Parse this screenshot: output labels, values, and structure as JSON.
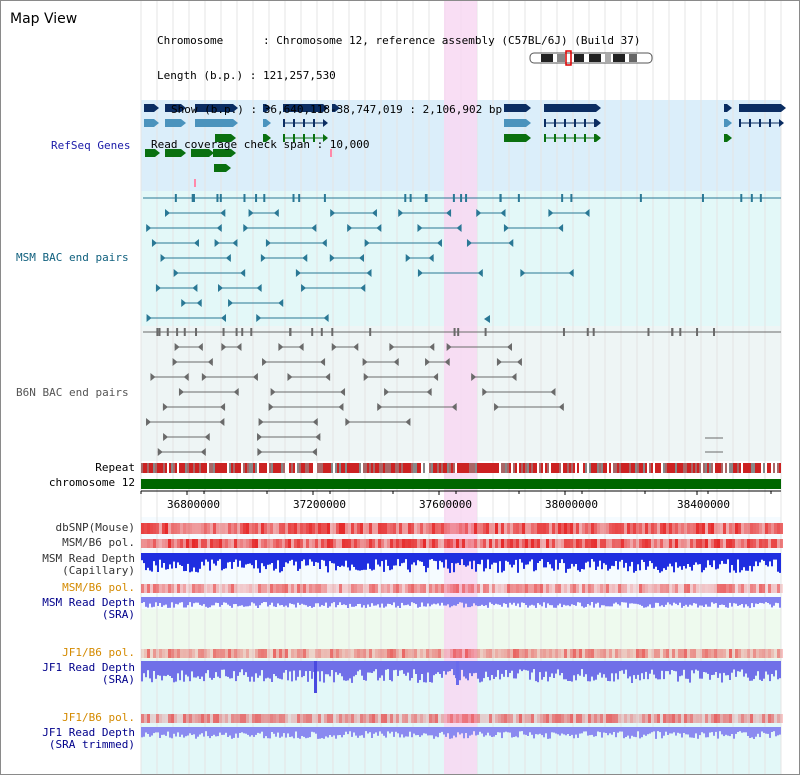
{
  "view_title": "Map View",
  "header": {
    "chromosome_line": "Chromosome      : Chromosome 12, reference assembly (C57BL/6J) (Build 37)",
    "length_line": "Length (b.p.) : 121,257,530",
    "show_line": "Show (b.p.) : 36,640,118-38,747,019 : 2,106,902 bp",
    "coverage_line": "Read coverage check span : 10,000"
  },
  "tracks": {
    "refseq": "RefSeq Genes",
    "msm_bac": "MSM BAC end pairs",
    "b6n_bac": "B6N BAC end pairs",
    "repeat": "Repeat",
    "chromosome": "chromosome 12",
    "dbsnp": "dbSNP(Mouse)",
    "msm_b6_pol_1": "MSM/B6 pol.",
    "msm_read_depth_cap_1": "MSM Read Depth",
    "msm_read_depth_cap_2": "(Capillary)",
    "msm_b6_pol_2": "MSM/B6 pol.",
    "msm_read_depth_sra_1": "MSM Read Depth",
    "msm_read_depth_sra_2": "(SRA)",
    "jf1_b6_pol_1": "JF1/B6 pol.",
    "jf1_read_depth_sra_1": "JF1 Read Depth",
    "jf1_read_depth_sra_2": "(SRA)",
    "jf1_b6_pol_2": "JF1/B6 pol.",
    "jf1_read_depth_trim_1": "JF1 Read Depth",
    "jf1_read_depth_trim_2": "(SRA trimmed)"
  },
  "axis": {
    "ticks": [
      "36800000",
      "37200000",
      "37600000",
      "38000000",
      "38400000"
    ]
  },
  "colors": {
    "refseq_bg": "#dbeefa",
    "msm_bg": "#e3f8f8",
    "b6n_bg": "#eef5f5",
    "highlight": "#f8d8f2",
    "gene_navy": "#0b2d62",
    "gene_light": "#4b93bd",
    "gene_green": "#0a7010",
    "msm_pair": "#2a7895",
    "b6n_pair": "#6a6a6a",
    "chromosome_bar": "#006600",
    "label_teal": "#10607e",
    "label_blue": "#00008b",
    "label_orange": "#d48a00",
    "label_navy": "#2a2a7a"
  }
}
